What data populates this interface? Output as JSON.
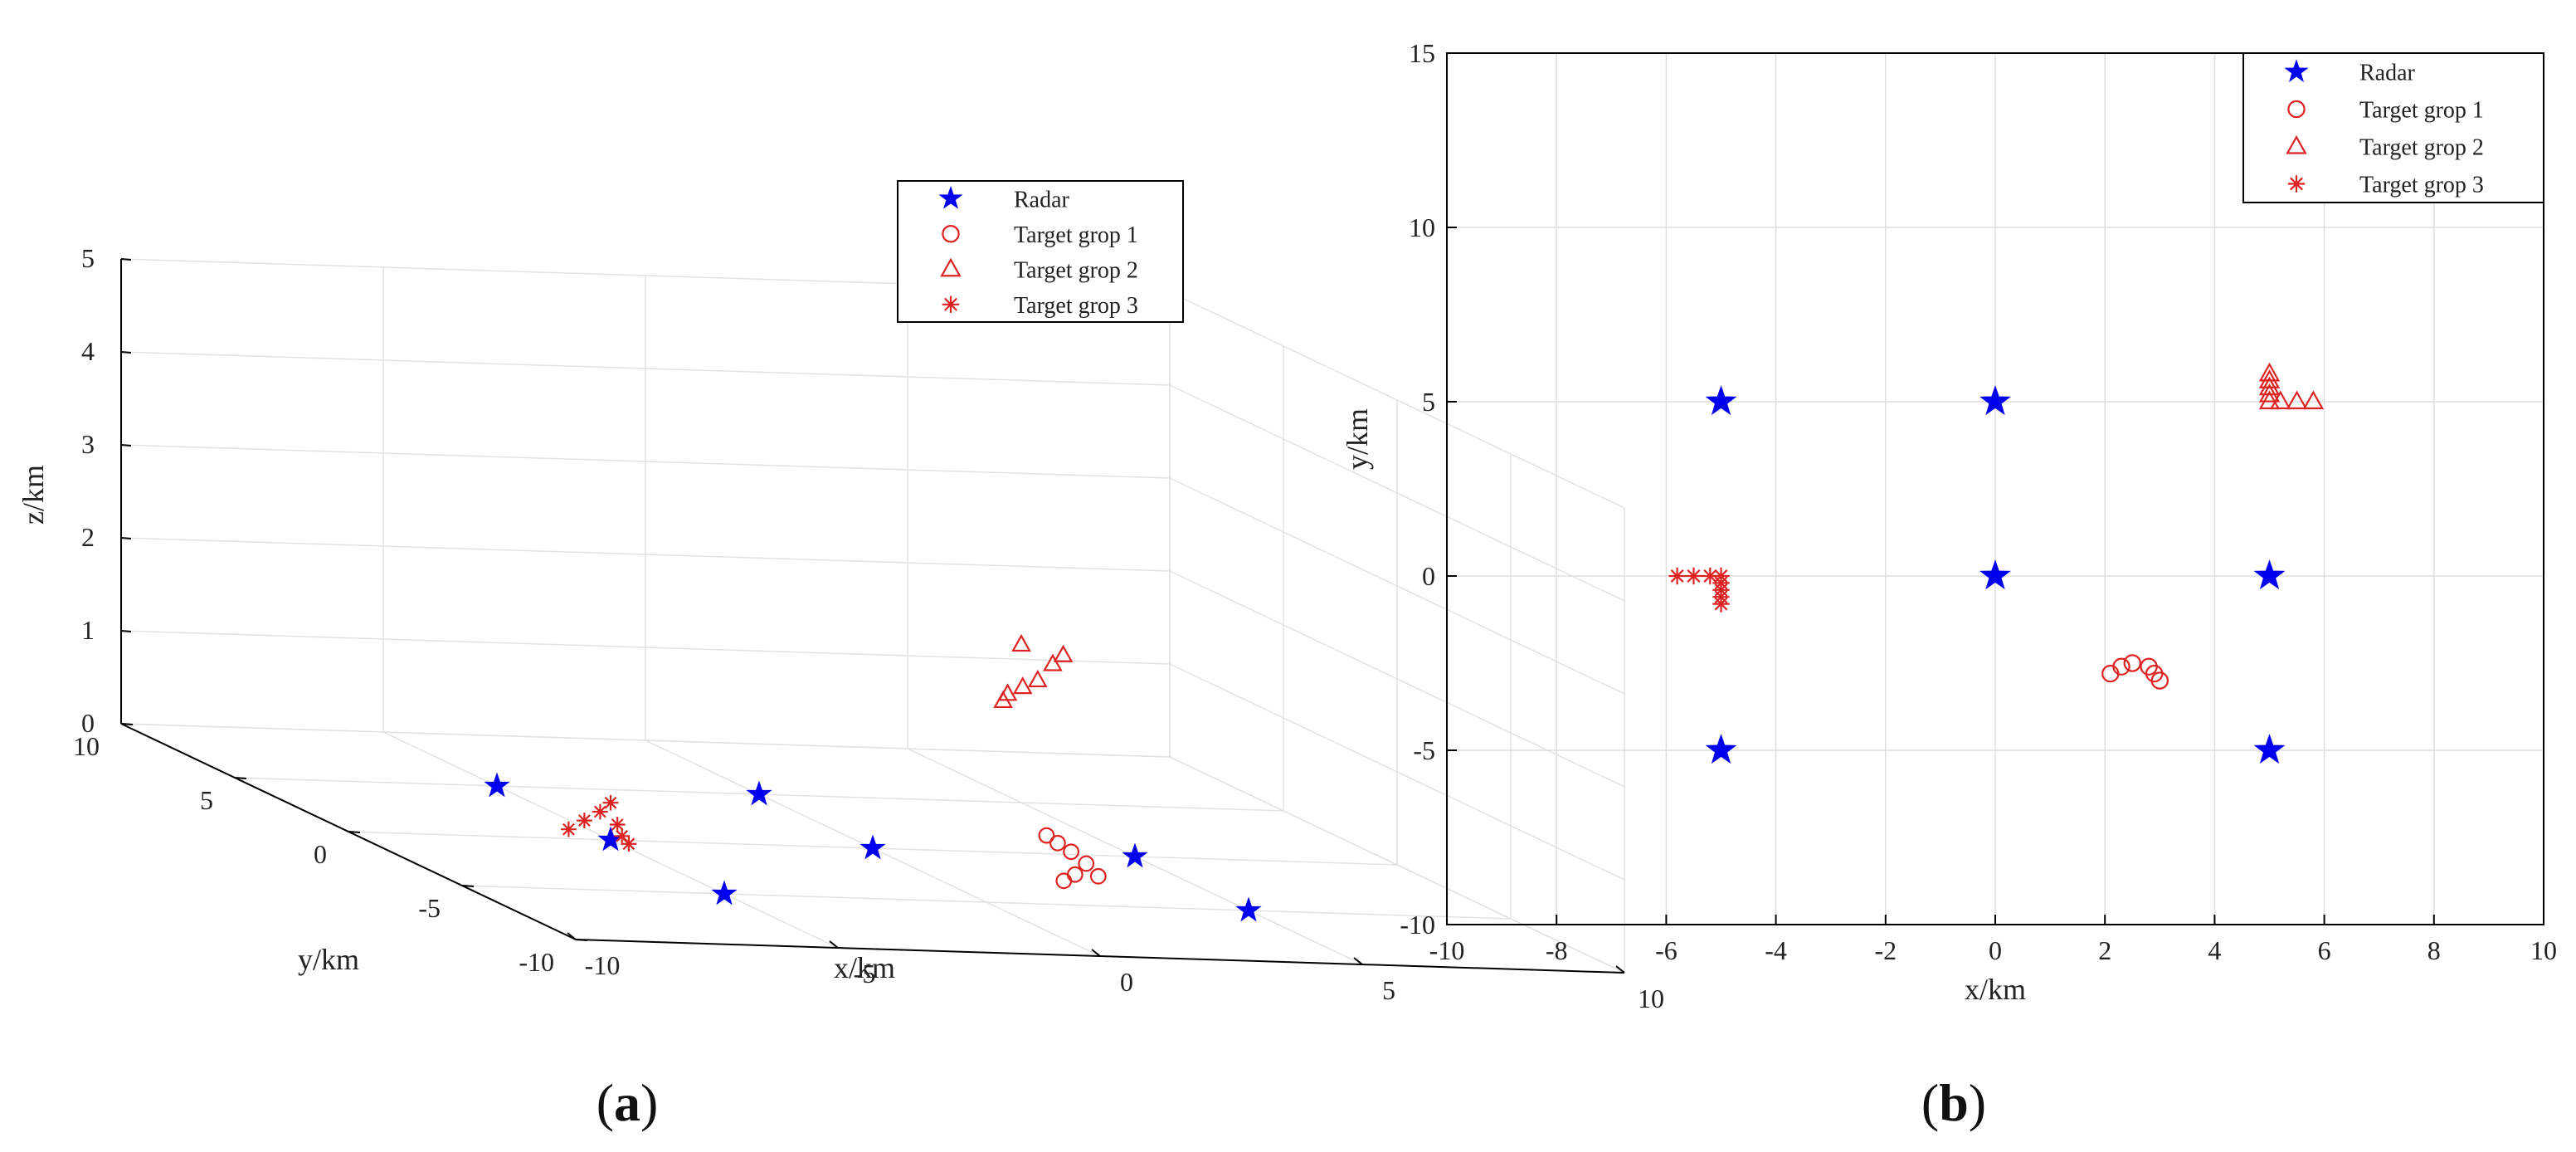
{
  "chart_data": [
    {
      "type": "scatter",
      "view": "3d",
      "panel_label": "a",
      "xlabel": "x/km",
      "ylabel": "y/km",
      "zlabel": "z/km",
      "xlim": [
        -10,
        10
      ],
      "ylim": [
        -10,
        10
      ],
      "zlim": [
        0,
        5
      ],
      "x_ticks": [
        "-10",
        "-5",
        "0",
        "5",
        "10"
      ],
      "y_ticks": [
        "-10",
        "-5",
        "0",
        "5",
        "10"
      ],
      "z_ticks": [
        "0",
        "1",
        "2",
        "3",
        "4",
        "5"
      ],
      "grid": true,
      "legend": {
        "position": "top-right",
        "entries": [
          "Radar",
          "Target grop 1",
          "Target grop 2",
          "Target grop 3"
        ]
      },
      "series": [
        {
          "name": "Radar",
          "marker": "star",
          "color": "#0000ee",
          "points": [
            {
              "x": -5,
              "y": 5,
              "z": 0
            },
            {
              "x": 0,
              "y": 5,
              "z": 0
            },
            {
              "x": -5,
              "y": 0,
              "z": 0
            },
            {
              "x": 0,
              "y": 0,
              "z": 0
            },
            {
              "x": 5,
              "y": 0,
              "z": 0
            },
            {
              "x": -5,
              "y": -5,
              "z": 0
            },
            {
              "x": 5,
              "y": -5,
              "z": 0
            }
          ]
        },
        {
          "name": "Target grop 1",
          "marker": "circle",
          "color": "#dd2222",
          "points": [
            {
              "x": 2.1,
              "y": -2.8,
              "z": 0.5
            },
            {
              "x": 2.4,
              "y": -2.6,
              "z": 0.4
            },
            {
              "x": 2.7,
              "y": -2.5,
              "z": 0.3
            },
            {
              "x": 2.9,
              "y": -2.7,
              "z": 0.2
            },
            {
              "x": 3.0,
              "y": -3.0,
              "z": 0.1
            },
            {
              "x": 2.6,
              "y": -2.9,
              "z": 0.1
            },
            {
              "x": 2.3,
              "y": -3.1,
              "z": 0.05
            }
          ]
        },
        {
          "name": "Target grop 2",
          "marker": "triangle",
          "color": "#dd2222",
          "points": [
            {
              "x": 5,
              "y": 5.8,
              "z": 1.0
            },
            {
              "x": 5,
              "y": 5.6,
              "z": 1.1
            },
            {
              "x": 5.2,
              "y": 5.4,
              "z": 1.2
            },
            {
              "x": 5.4,
              "y": 5.2,
              "z": 1.3
            },
            {
              "x": 5.6,
              "y": 5.0,
              "z": 1.5
            },
            {
              "x": 5.8,
              "y": 5.0,
              "z": 1.6
            },
            {
              "x": 5,
              "y": 5.0,
              "z": 1.7
            }
          ]
        },
        {
          "name": "Target grop 3",
          "marker": "asterisk",
          "color": "#dd2222",
          "points": [
            {
              "x": -5.8,
              "y": 0,
              "z": 0.1
            },
            {
              "x": -5.5,
              "y": 0,
              "z": 0.2
            },
            {
              "x": -5.2,
              "y": 0,
              "z": 0.3
            },
            {
              "x": -5,
              "y": 0,
              "z": 0.4
            },
            {
              "x": -5,
              "y": -0.3,
              "z": 0.2
            },
            {
              "x": -5,
              "y": -0.5,
              "z": 0.1
            },
            {
              "x": -5,
              "y": -0.8,
              "z": 0.05
            }
          ]
        }
      ]
    },
    {
      "type": "scatter",
      "view": "2d",
      "panel_label": "b",
      "xlabel": "x/km",
      "ylabel": "y/km",
      "xlim": [
        -10,
        10
      ],
      "ylim": [
        -10,
        15
      ],
      "x_ticks": [
        "-10",
        "-8",
        "-6",
        "-4",
        "-2",
        "0",
        "2",
        "4",
        "6",
        "8",
        "10"
      ],
      "y_ticks": [
        "-10",
        "-5",
        "0",
        "5",
        "10",
        "15"
      ],
      "grid": true,
      "legend": {
        "position": "top-right",
        "entries": [
          "Radar",
          "Target grop 1",
          "Target grop 2",
          "Target grop 3"
        ]
      },
      "series": [
        {
          "name": "Radar",
          "marker": "star",
          "color": "#0000ee",
          "points": [
            {
              "x": -5,
              "y": 5
            },
            {
              "x": 0,
              "y": 5
            },
            {
              "x": 0,
              "y": 0
            },
            {
              "x": 5,
              "y": 0
            },
            {
              "x": -5,
              "y": -5
            },
            {
              "x": 5,
              "y": -5
            }
          ]
        },
        {
          "name": "Target grop 1",
          "marker": "circle",
          "color": "#dd2222",
          "points": [
            {
              "x": 2.1,
              "y": -2.8
            },
            {
              "x": 2.3,
              "y": -2.6
            },
            {
              "x": 2.5,
              "y": -2.5
            },
            {
              "x": 2.8,
              "y": -2.6
            },
            {
              "x": 2.9,
              "y": -2.8
            },
            {
              "x": 3.0,
              "y": -3.0
            }
          ]
        },
        {
          "name": "Target grop 2",
          "marker": "triangle",
          "color": "#dd2222",
          "points": [
            {
              "x": 5,
              "y": 5.8
            },
            {
              "x": 5,
              "y": 5.6
            },
            {
              "x": 5,
              "y": 5.4
            },
            {
              "x": 5,
              "y": 5.2
            },
            {
              "x": 5,
              "y": 5.0
            },
            {
              "x": 5.2,
              "y": 5.0
            },
            {
              "x": 5.5,
              "y": 5.0
            },
            {
              "x": 5.8,
              "y": 5.0
            }
          ]
        },
        {
          "name": "Target grop 3",
          "marker": "asterisk",
          "color": "#dd2222",
          "points": [
            {
              "x": -5.8,
              "y": 0
            },
            {
              "x": -5.5,
              "y": 0
            },
            {
              "x": -5.2,
              "y": 0
            },
            {
              "x": -5,
              "y": 0
            },
            {
              "x": -5,
              "y": -0.2
            },
            {
              "x": -5,
              "y": -0.4
            },
            {
              "x": -5,
              "y": -0.6
            },
            {
              "x": -5,
              "y": -0.8
            }
          ]
        }
      ]
    }
  ],
  "captions": {
    "a": {
      "open": "(",
      "letter": "a",
      "close": ")"
    },
    "b": {
      "open": "(",
      "letter": "b",
      "close": ")"
    }
  }
}
